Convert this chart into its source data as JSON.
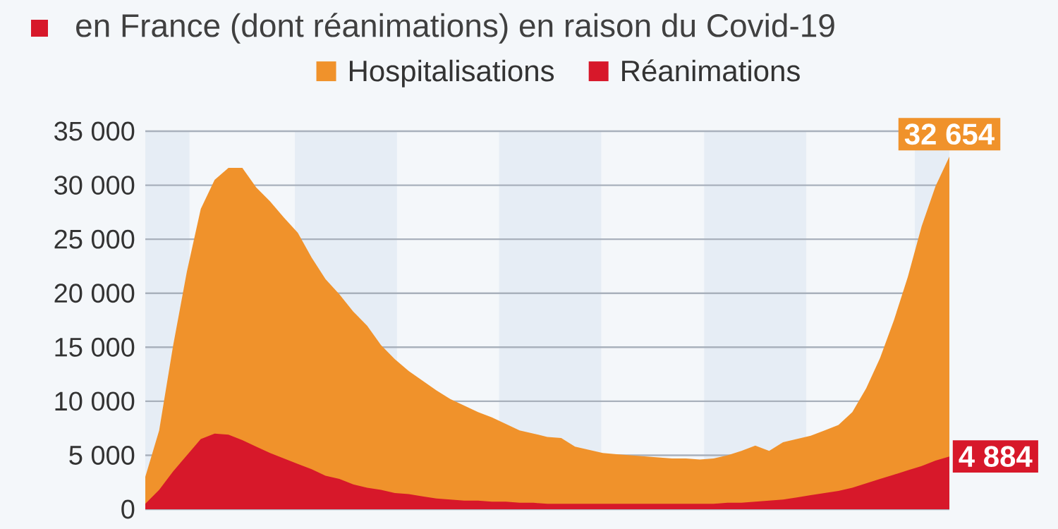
{
  "chart_data": {
    "type": "area",
    "title": "en France (dont réanimations) en raison du Covid-19",
    "categories": [
      null,
      null,
      null,
      null,
      null,
      null,
      null,
      null,
      null,
      null,
      null,
      null,
      null,
      null,
      null,
      null,
      null,
      null,
      null,
      null,
      null,
      null,
      null,
      null,
      null,
      null,
      null,
      null,
      null,
      null,
      null,
      null,
      null,
      null,
      null,
      null,
      null,
      null,
      null,
      null,
      null,
      null,
      null,
      null,
      null,
      null,
      null,
      null,
      null,
      null,
      null,
      null,
      null,
      null,
      null,
      null,
      null,
      null,
      null
    ],
    "series": [
      {
        "name": "Hospitalisations",
        "color": "#f0922b",
        "values": [
          3000,
          7300,
          15100,
          22000,
          27800,
          30500,
          31600,
          31600,
          29800,
          28500,
          27000,
          25600,
          23300,
          21300,
          19900,
          18300,
          17000,
          15200,
          13900,
          12800,
          11900,
          11000,
          10200,
          9600,
          9000,
          8500,
          7900,
          7300,
          7000,
          6700,
          6600,
          5800,
          5500,
          5200,
          5100,
          5000,
          4900,
          4800,
          4700,
          4700,
          4600,
          4700,
          5000,
          5400,
          5900,
          5400,
          6200,
          6500,
          6800,
          7300,
          7800,
          9000,
          11200,
          14000,
          17500,
          21500,
          26200,
          29900,
          32654
        ],
        "value_labels": [
          null,
          null,
          null,
          null,
          null,
          null,
          null,
          null,
          null,
          null,
          null,
          null,
          null,
          null,
          null,
          null,
          null,
          null,
          null,
          null,
          null,
          null,
          null,
          null,
          null,
          null,
          null,
          null,
          null,
          null,
          null,
          null,
          null,
          null,
          null,
          null,
          null,
          null,
          null,
          null,
          null,
          null,
          null,
          null,
          null,
          null,
          null,
          null,
          null,
          null,
          null,
          null,
          null,
          null,
          null,
          null,
          null,
          null,
          "32 654"
        ]
      },
      {
        "name": "Réanimations",
        "color": "#d7182a",
        "values": [
          500,
          1800,
          3500,
          5000,
          6500,
          7000,
          6900,
          6400,
          5800,
          5200,
          4700,
          4200,
          3700,
          3100,
          2800,
          2300,
          2000,
          1800,
          1500,
          1400,
          1200,
          1000,
          900,
          800,
          800,
          700,
          700,
          600,
          600,
          500,
          500,
          500,
          500,
          500,
          500,
          500,
          500,
          500,
          500,
          500,
          500,
          500,
          600,
          600,
          700,
          800,
          900,
          1100,
          1300,
          1500,
          1700,
          2000,
          2400,
          2800,
          3200,
          3600,
          4000,
          4500,
          4884
        ],
        "value_labels": [
          null,
          null,
          null,
          null,
          null,
          null,
          null,
          null,
          null,
          null,
          null,
          null,
          null,
          null,
          null,
          null,
          null,
          null,
          null,
          null,
          null,
          null,
          null,
          null,
          null,
          null,
          null,
          null,
          null,
          null,
          null,
          null,
          null,
          null,
          null,
          null,
          null,
          null,
          null,
          null,
          null,
          null,
          null,
          null,
          null,
          null,
          null,
          null,
          null,
          null,
          null,
          null,
          null,
          null,
          null,
          null,
          null,
          null,
          "4 884"
        ]
      }
    ],
    "ylim": [
      0,
      35000
    ],
    "yticks": [
      0,
      {
        "value": 5000,
        "label": "5 000"
      },
      {
        "value": 10000,
        "label": "10 000"
      },
      {
        "value": 15000,
        "label": "15 000"
      },
      {
        "value": 20000,
        "label": "20 000"
      },
      {
        "value": 25000,
        "label": "25 000"
      },
      {
        "value": 30000,
        "label": "30 000"
      },
      {
        "value": 35000,
        "label": "35 000"
      }
    ],
    "grid": "y",
    "legend": "top",
    "tick_labels": "y"
  }
}
